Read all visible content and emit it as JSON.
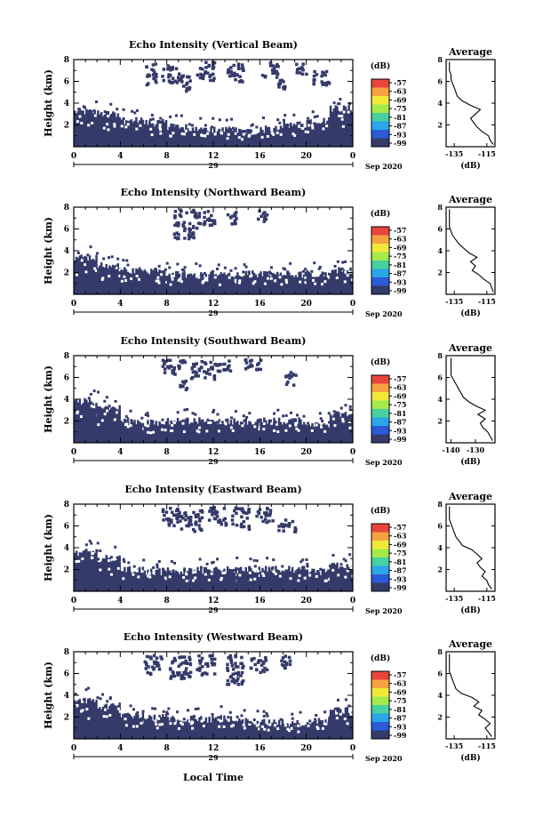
{
  "x_axis": {
    "label": "Local Time",
    "date_label": "Sep 2020",
    "day_label": "29",
    "ticks": [
      "0",
      "4",
      "8",
      "12",
      "16",
      "20",
      "0"
    ]
  },
  "colorbar": {
    "unit": "(dB)",
    "ticks": [
      "-57",
      "-63",
      "-69",
      "-75",
      "-81",
      "-87",
      "-93",
      "-99"
    ],
    "colors": [
      "#e8453c",
      "#f4a340",
      "#f2e83a",
      "#a4ea4a",
      "#47d1a0",
      "#2aa7ea",
      "#2b5bd6",
      "#343a6a"
    ]
  },
  "no_data_color": "#ffffff",
  "echo_color": "#343a6a",
  "chart_data": [
    {
      "type": "heatmap",
      "title": "Echo Intensity (Vertical Beam)",
      "ylabel": "Height (km)",
      "yticks": [
        "2",
        "4",
        "6",
        "8"
      ],
      "ylim": [
        0,
        8
      ],
      "xlim": [
        0,
        24
      ],
      "columns": [
        {
          "x0": 0,
          "x1": 2,
          "h": 3.2
        },
        {
          "x0": 2,
          "x1": 4,
          "h": 3.0
        },
        {
          "x0": 4,
          "x1": 6,
          "h": 2.4
        },
        {
          "x0": 6,
          "x1": 8,
          "h": 2.2
        },
        {
          "x0": 8,
          "x1": 10,
          "h": 1.8
        },
        {
          "x0": 10,
          "x1": 12,
          "h": 1.6
        },
        {
          "x0": 12,
          "x1": 14,
          "h": 1.5
        },
        {
          "x0": 14,
          "x1": 16,
          "h": 1.4
        },
        {
          "x0": 16,
          "x1": 18,
          "h": 1.6
        },
        {
          "x0": 18,
          "x1": 20,
          "h": 2.0
        },
        {
          "x0": 20,
          "x1": 22,
          "h": 2.4
        },
        {
          "x0": 22,
          "x1": 24,
          "h": 3.5
        }
      ],
      "upper_echo": [
        {
          "x0": 6,
          "x1": 7,
          "y0": 5.8,
          "y1": 7.8
        },
        {
          "x0": 7.5,
          "x1": 9,
          "y0": 6.0,
          "y1": 7.6
        },
        {
          "x0": 9,
          "x1": 10,
          "y0": 5.2,
          "y1": 6.8
        },
        {
          "x0": 10.5,
          "x1": 12,
          "y0": 6.2,
          "y1": 7.9
        },
        {
          "x0": 13,
          "x1": 14.5,
          "y0": 6.0,
          "y1": 7.8
        },
        {
          "x0": 16,
          "x1": 17.5,
          "y0": 6.5,
          "y1": 7.9
        },
        {
          "x0": 17.5,
          "x1": 18.5,
          "y0": 5.4,
          "y1": 6.4
        },
        {
          "x0": 19,
          "x1": 20,
          "y0": 6.6,
          "y1": 7.8
        },
        {
          "x0": 20.5,
          "x1": 22,
          "y0": 5.8,
          "y1": 7.2
        }
      ],
      "profile": {
        "title": "Average",
        "xlabel": "(dB)",
        "xticks": [
          "-135",
          "-115"
        ],
        "xlim": [
          -140,
          -110
        ],
        "ylim": [
          0,
          8
        ],
        "yticks": [
          "2",
          "4",
          "6",
          "8"
        ],
        "heights": [
          0.2,
          0.6,
          1.0,
          1.4,
          1.8,
          2.2,
          2.6,
          3.0,
          3.4,
          3.8,
          4.2,
          4.6,
          5.0,
          5.4,
          5.8,
          6.2,
          6.6,
          7.0,
          7.4,
          7.8
        ],
        "values": [
          -111,
          -113,
          -114,
          -118,
          -121,
          -123,
          -125,
          -122,
          -119,
          -125,
          -130,
          -133,
          -134,
          -135,
          -136,
          -137,
          -137,
          -138,
          -138,
          -138
        ]
      }
    },
    {
      "type": "heatmap",
      "title": "Echo Intensity (Northward Beam)",
      "ylabel": "Height (km)",
      "yticks": [
        "2",
        "4",
        "6",
        "8"
      ],
      "ylim": [
        0,
        8
      ],
      "xlim": [
        0,
        24
      ],
      "columns": [
        {
          "x0": 0,
          "x1": 2,
          "h": 3.4
        },
        {
          "x0": 2,
          "x1": 4,
          "h": 2.6
        },
        {
          "x0": 4,
          "x1": 6,
          "h": 2.2
        },
        {
          "x0": 6,
          "x1": 8,
          "h": 2.0
        },
        {
          "x0": 8,
          "x1": 10,
          "h": 1.8
        },
        {
          "x0": 10,
          "x1": 12,
          "h": 1.8
        },
        {
          "x0": 12,
          "x1": 14,
          "h": 1.8
        },
        {
          "x0": 14,
          "x1": 16,
          "h": 1.9
        },
        {
          "x0": 16,
          "x1": 18,
          "h": 1.8
        },
        {
          "x0": 18,
          "x1": 20,
          "h": 1.8
        },
        {
          "x0": 20,
          "x1": 22,
          "h": 1.9
        },
        {
          "x0": 22,
          "x1": 24,
          "h": 2.2
        }
      ],
      "upper_echo": [
        {
          "x0": 8.5,
          "x1": 10.5,
          "y0": 5.2,
          "y1": 7.9
        },
        {
          "x0": 10.5,
          "x1": 12,
          "y0": 6.4,
          "y1": 7.8
        },
        {
          "x0": 13,
          "x1": 14,
          "y0": 6.6,
          "y1": 7.8
        },
        {
          "x0": 15.5,
          "x1": 16.5,
          "y0": 6.8,
          "y1": 7.9
        }
      ],
      "profile": {
        "title": "Average",
        "xlabel": "(dB)",
        "xticks": [
          "-135",
          "-115"
        ],
        "xlim": [
          -140,
          -110
        ],
        "ylim": [
          0,
          8
        ],
        "yticks": [
          "2",
          "4",
          "6",
          "8"
        ],
        "heights": [
          0.2,
          0.6,
          1.0,
          1.4,
          1.8,
          2.2,
          2.6,
          3.0,
          3.4,
          3.8,
          4.2,
          4.6,
          5.0,
          5.4,
          5.8,
          6.2,
          6.6,
          7.0,
          7.4,
          7.8
        ],
        "values": [
          -111,
          -112,
          -113,
          -117,
          -120,
          -124,
          -122,
          -125,
          -121,
          -126,
          -129,
          -132,
          -134,
          -136,
          -137,
          -138,
          -138,
          -138,
          -138,
          -138
        ]
      }
    },
    {
      "type": "heatmap",
      "title": "Echo Intensity (Southward Beam)",
      "ylabel": "Height (km)",
      "yticks": [
        "2",
        "4",
        "6",
        "8"
      ],
      "ylim": [
        0,
        8
      ],
      "xlim": [
        0,
        24
      ],
      "columns": [
        {
          "x0": 0,
          "x1": 2,
          "h": 3.8
        },
        {
          "x0": 2,
          "x1": 4,
          "h": 3.2
        },
        {
          "x0": 4,
          "x1": 6,
          "h": 2.0
        },
        {
          "x0": 6,
          "x1": 8,
          "h": 1.8
        },
        {
          "x0": 8,
          "x1": 10,
          "h": 2.0
        },
        {
          "x0": 10,
          "x1": 12,
          "h": 2.0
        },
        {
          "x0": 12,
          "x1": 14,
          "h": 2.0
        },
        {
          "x0": 14,
          "x1": 16,
          "h": 2.0
        },
        {
          "x0": 16,
          "x1": 18,
          "h": 2.0
        },
        {
          "x0": 18,
          "x1": 20,
          "h": 2.0
        },
        {
          "x0": 20,
          "x1": 22,
          "h": 1.8
        },
        {
          "x0": 22,
          "x1": 24,
          "h": 2.6
        }
      ],
      "upper_echo": [
        {
          "x0": 7.5,
          "x1": 9.5,
          "y0": 6.4,
          "y1": 7.9
        },
        {
          "x0": 10,
          "x1": 12,
          "y0": 5.8,
          "y1": 7.6
        },
        {
          "x0": 12,
          "x1": 13.5,
          "y0": 6.6,
          "y1": 7.8
        },
        {
          "x0": 14.5,
          "x1": 16,
          "y0": 6.8,
          "y1": 7.9
        },
        {
          "x0": 18,
          "x1": 19,
          "y0": 5.4,
          "y1": 6.6
        },
        {
          "x0": 9,
          "x1": 10,
          "y0": 5.0,
          "y1": 5.8
        }
      ],
      "profile": {
        "title": "Average",
        "xlabel": "(dB)",
        "xticks": [
          "-140",
          "-130"
        ],
        "xlim": [
          -142,
          -122
        ],
        "ylim": [
          0,
          8
        ],
        "yticks": [
          "2",
          "4",
          "6",
          "8"
        ],
        "heights": [
          0.2,
          0.6,
          1.0,
          1.4,
          1.8,
          2.2,
          2.6,
          3.0,
          3.4,
          3.8,
          4.2,
          4.6,
          5.0,
          5.4,
          5.8,
          6.2,
          6.6,
          7.0,
          7.4,
          7.8
        ],
        "values": [
          -123,
          -124,
          -125,
          -127,
          -128,
          -126,
          -129,
          -126,
          -130,
          -133,
          -135,
          -136,
          -137,
          -138,
          -139,
          -140,
          -140,
          -140,
          -140,
          -140
        ]
      }
    },
    {
      "type": "heatmap",
      "title": "Echo Intensity (Eastward Beam)",
      "ylabel": "Height (km)",
      "yticks": [
        "2",
        "4",
        "6",
        "8"
      ],
      "ylim": [
        0,
        8
      ],
      "xlim": [
        0,
        24
      ],
      "columns": [
        {
          "x0": 0,
          "x1": 2,
          "h": 3.6
        },
        {
          "x0": 2,
          "x1": 4,
          "h": 3.0
        },
        {
          "x0": 4,
          "x1": 6,
          "h": 2.0
        },
        {
          "x0": 6,
          "x1": 8,
          "h": 1.8
        },
        {
          "x0": 8,
          "x1": 10,
          "h": 1.9
        },
        {
          "x0": 10,
          "x1": 12,
          "h": 1.9
        },
        {
          "x0": 12,
          "x1": 14,
          "h": 2.0
        },
        {
          "x0": 14,
          "x1": 16,
          "h": 2.0
        },
        {
          "x0": 16,
          "x1": 18,
          "h": 2.0
        },
        {
          "x0": 18,
          "x1": 20,
          "h": 2.0
        },
        {
          "x0": 20,
          "x1": 22,
          "h": 1.8
        },
        {
          "x0": 22,
          "x1": 24,
          "h": 2.4
        }
      ],
      "upper_echo": [
        {
          "x0": 7.5,
          "x1": 9,
          "y0": 6.0,
          "y1": 7.8
        },
        {
          "x0": 9,
          "x1": 11,
          "y0": 5.6,
          "y1": 7.6
        },
        {
          "x0": 11.5,
          "x1": 13,
          "y0": 6.2,
          "y1": 7.9
        },
        {
          "x0": 13.5,
          "x1": 15,
          "y0": 5.8,
          "y1": 7.8
        },
        {
          "x0": 15.5,
          "x1": 17,
          "y0": 6.4,
          "y1": 7.8
        },
        {
          "x0": 17.5,
          "x1": 19,
          "y0": 5.6,
          "y1": 6.8
        }
      ],
      "profile": {
        "title": "Average",
        "xlabel": "(dB)",
        "xticks": [
          "-135",
          "-115"
        ],
        "xlim": [
          -140,
          -110
        ],
        "ylim": [
          0,
          8
        ],
        "yticks": [
          "2",
          "4",
          "6",
          "8"
        ],
        "heights": [
          0.2,
          0.6,
          1.0,
          1.4,
          1.8,
          2.2,
          2.6,
          3.0,
          3.4,
          3.8,
          4.2,
          4.6,
          5.0,
          5.4,
          5.8,
          6.2,
          6.6,
          7.0,
          7.4,
          7.8
        ],
        "values": [
          -112,
          -114,
          -115,
          -118,
          -116,
          -119,
          -121,
          -118,
          -121,
          -124,
          -130,
          -132,
          -134,
          -135,
          -136,
          -137,
          -138,
          -138,
          -138,
          -138
        ]
      }
    },
    {
      "type": "heatmap",
      "title": "Echo Intensity (Westward Beam)",
      "ylabel": "Height (km)",
      "yticks": [
        "2",
        "4",
        "6",
        "8"
      ],
      "ylim": [
        0,
        8
      ],
      "xlim": [
        0,
        24
      ],
      "columns": [
        {
          "x0": 0,
          "x1": 2,
          "h": 3.6
        },
        {
          "x0": 2,
          "x1": 4,
          "h": 3.0
        },
        {
          "x0": 4,
          "x1": 6,
          "h": 2.2
        },
        {
          "x0": 6,
          "x1": 8,
          "h": 2.0
        },
        {
          "x0": 8,
          "x1": 10,
          "h": 1.8
        },
        {
          "x0": 10,
          "x1": 12,
          "h": 1.8
        },
        {
          "x0": 12,
          "x1": 14,
          "h": 1.9
        },
        {
          "x0": 14,
          "x1": 16,
          "h": 1.6
        },
        {
          "x0": 16,
          "x1": 18,
          "h": 1.5
        },
        {
          "x0": 18,
          "x1": 20,
          "h": 1.4
        },
        {
          "x0": 20,
          "x1": 22,
          "h": 1.6
        },
        {
          "x0": 22,
          "x1": 24,
          "h": 2.6
        }
      ],
      "upper_echo": [
        {
          "x0": 6,
          "x1": 7.5,
          "y0": 6.0,
          "y1": 7.8
        },
        {
          "x0": 8,
          "x1": 10,
          "y0": 5.6,
          "y1": 7.7
        },
        {
          "x0": 10.5,
          "x1": 12,
          "y0": 6.0,
          "y1": 7.8
        },
        {
          "x0": 13,
          "x1": 14.5,
          "y0": 5.0,
          "y1": 7.8
        },
        {
          "x0": 15,
          "x1": 16.5,
          "y0": 6.2,
          "y1": 7.6
        },
        {
          "x0": 17.5,
          "x1": 18.5,
          "y0": 6.6,
          "y1": 7.9
        }
      ],
      "profile": {
        "title": "Average",
        "xlabel": "(dB)",
        "xticks": [
          "-135",
          "-115"
        ],
        "xlim": [
          -140,
          -110
        ],
        "ylim": [
          0,
          8
        ],
        "yticks": [
          "2",
          "4",
          "6",
          "8"
        ],
        "heights": [
          0.2,
          0.6,
          1.0,
          1.4,
          1.8,
          2.2,
          2.6,
          3.0,
          3.4,
          3.8,
          4.2,
          4.6,
          5.0,
          5.4,
          5.8,
          6.2,
          6.6,
          7.0,
          7.4,
          7.8
        ],
        "values": [
          -112,
          -114,
          -116,
          -113,
          -116,
          -120,
          -118,
          -123,
          -120,
          -124,
          -131,
          -134,
          -135,
          -136,
          -137,
          -138,
          -138,
          -138,
          -138,
          -138
        ]
      }
    }
  ]
}
